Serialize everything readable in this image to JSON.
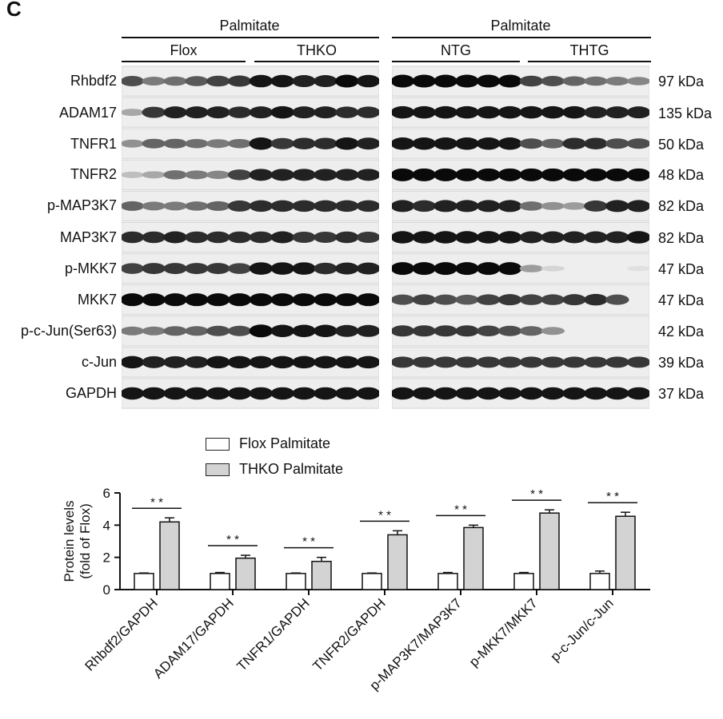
{
  "panel_letter": "C",
  "blot": {
    "left_group": {
      "title": "Palmitate",
      "sub_labels": [
        "Flox",
        "THKO"
      ]
    },
    "right_group": {
      "title": "Palmitate",
      "sub_labels": [
        "NTG",
        "THTG"
      ]
    },
    "rows": [
      {
        "protein": "Rhbdf2",
        "kda": "97 kDa"
      },
      {
        "protein": "ADAM17",
        "kda": "135 kDa"
      },
      {
        "protein": "TNFR1",
        "kda": "50 kDa"
      },
      {
        "protein": "TNFR2",
        "kda": "48 kDa"
      },
      {
        "protein": "p-MAP3K7",
        "kda": "82 kDa"
      },
      {
        "protein": "MAP3K7",
        "kda": "82 kDa"
      },
      {
        "protein": "p-MKK7",
        "kda": "47 kDa"
      },
      {
        "protein": "MKK7",
        "kda": "47 kDa"
      },
      {
        "protein": "p-c-Jun(Ser63)",
        "kda": "42 kDa"
      },
      {
        "protein": "c-Jun",
        "kda": "39 kDa"
      },
      {
        "protein": "GAPDH",
        "kda": "37 kDa"
      }
    ]
  },
  "legend": [
    {
      "label": "Flox Palmitate",
      "color": "#ffffff"
    },
    {
      "label": "THKO Palmitate",
      "color": "#d3d3d3"
    }
  ],
  "chart_data": {
    "type": "bar",
    "ylabel": "Protein levels\n(fold of Flox)",
    "ylabel_lines": [
      "Protein levels",
      "(fold of Flox)"
    ],
    "ylim": [
      0,
      6
    ],
    "yticks": [
      "0",
      "2",
      "4",
      "6"
    ],
    "categories": [
      "Rhbdf2/GAPDH",
      "ADAM17/GAPDH",
      "TNFR1/GAPDH",
      "TNFR2/GAPDH",
      "p-MAP3K7/MAP3K7",
      "p-MKK7/MKK7",
      "p-c-Jun/c-Jun"
    ],
    "series": [
      {
        "name": "Flox Palmitate",
        "color": "#ffffff",
        "values": [
          1.0,
          1.0,
          1.0,
          1.0,
          1.0,
          1.0,
          1.0
        ],
        "errors": [
          0.03,
          0.06,
          0.03,
          0.03,
          0.06,
          0.06,
          0.15
        ]
      },
      {
        "name": "THKO Palmitate",
        "color": "#d3d3d3",
        "values": [
          4.2,
          1.95,
          1.75,
          3.4,
          3.85,
          4.75,
          4.55
        ],
        "errors": [
          0.25,
          0.18,
          0.25,
          0.25,
          0.15,
          0.2,
          0.25
        ]
      }
    ],
    "significance": [
      "* *",
      "* *",
      "* *",
      "* *",
      "* *",
      "* *",
      "* *"
    ],
    "grid": false
  }
}
